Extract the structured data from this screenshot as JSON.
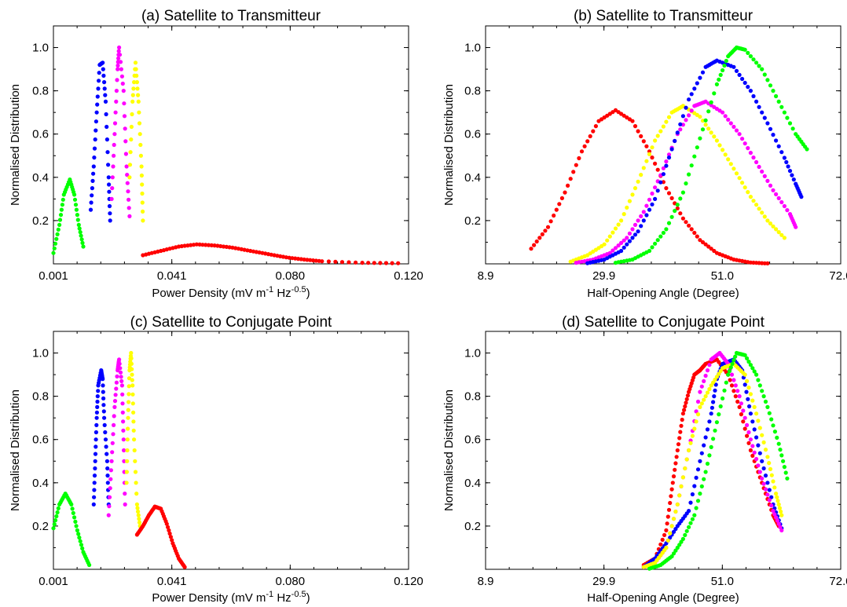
{
  "figure": {
    "panel_titles": [
      "(a) Satellite to Transmitteur",
      "(b) Satellite to Transmitteur",
      "(c) Satellite to Conjugate Point",
      "(d) Satellite to Conjugate Point"
    ],
    "ylabel": "Normalised Distribution",
    "xlabel_power_parts": [
      "Power Density (mV m",
      "-1",
      " Hz",
      "-0.5",
      ")"
    ],
    "xlabel_angle": "Half-Opening Angle (Degree)"
  },
  "colors": {
    "green": "#00ff00",
    "blue": "#0000ff",
    "magenta": "#ff00ff",
    "yellow": "#ffff00",
    "red": "#ff0000"
  },
  "chart_data": [
    {
      "type": "scatter",
      "title": "(a) Satellite to Transmitteur",
      "xlabel": "Power Density (mV m-1 Hz-0.5)",
      "ylabel": "Normalised Distribution",
      "xlim": [
        0.001,
        0.12
      ],
      "ylim": [
        0,
        1.1
      ],
      "xticks": [
        "0.001",
        "0.041",
        "0.080",
        "0.120"
      ],
      "yticks": [
        "0.2",
        "0.4",
        "0.6",
        "0.8",
        "1.0"
      ],
      "grid": false,
      "series": [
        {
          "color": "green",
          "points": [
            [
              0.001,
              0.05
            ],
            [
              0.003,
              0.18
            ],
            [
              0.0045,
              0.32
            ],
            [
              0.0065,
              0.39
            ],
            [
              0.008,
              0.32
            ],
            [
              0.0095,
              0.18
            ],
            [
              0.011,
              0.08
            ]
          ]
        },
        {
          "color": "blue",
          "points": [
            [
              0.0135,
              0.25
            ],
            [
              0.0145,
              0.45
            ],
            [
              0.0155,
              0.7
            ],
            [
              0.0165,
              0.92
            ],
            [
              0.0175,
              0.93
            ],
            [
              0.0185,
              0.75
            ],
            [
              0.0195,
              0.4
            ],
            [
              0.02,
              0.2
            ]
          ]
        },
        {
          "color": "magenta",
          "points": [
            [
              0.0205,
              0.3
            ],
            [
              0.0215,
              0.6
            ],
            [
              0.0225,
              0.9
            ],
            [
              0.023,
              1.0
            ],
            [
              0.0245,
              0.8
            ],
            [
              0.0255,
              0.45
            ],
            [
              0.0265,
              0.22
            ]
          ]
        },
        {
          "color": "yellow",
          "points": [
            [
              0.0265,
              0.4
            ],
            [
              0.0275,
              0.75
            ],
            [
              0.0285,
              0.93
            ],
            [
              0.0295,
              0.75
            ],
            [
              0.0305,
              0.45
            ],
            [
              0.031,
              0.2
            ]
          ]
        },
        {
          "color": "red",
          "points": [
            [
              0.031,
              0.04
            ],
            [
              0.037,
              0.06
            ],
            [
              0.043,
              0.08
            ],
            [
              0.049,
              0.09
            ],
            [
              0.055,
              0.085
            ],
            [
              0.061,
              0.075
            ],
            [
              0.067,
              0.06
            ],
            [
              0.073,
              0.045
            ],
            [
              0.079,
              0.03
            ],
            [
              0.085,
              0.02
            ],
            [
              0.091,
              0.012
            ],
            [
              0.1045,
              0.005
            ],
            [
              0.1165,
              0.003
            ]
          ]
        }
      ]
    },
    {
      "type": "scatter",
      "title": "(b) Satellite to Transmitteur",
      "xlabel": "Half-Opening Angle (Degree)",
      "ylabel": "Normalised Distribution",
      "xlim": [
        8.9,
        72.0
      ],
      "ylim": [
        0,
        1.1
      ],
      "xticks": [
        "8.9",
        "29.9",
        "51.0",
        "72.0"
      ],
      "yticks": [
        "0.2",
        "0.4",
        "0.6",
        "0.8",
        "1.0"
      ],
      "grid": false,
      "series": [
        {
          "color": "red",
          "points": [
            [
              17,
              0.07
            ],
            [
              20,
              0.17
            ],
            [
              23,
              0.33
            ],
            [
              26,
              0.52
            ],
            [
              29,
              0.66
            ],
            [
              32,
              0.71
            ],
            [
              35,
              0.66
            ],
            [
              38,
              0.52
            ],
            [
              41,
              0.35
            ],
            [
              44,
              0.21
            ],
            [
              47,
              0.11
            ],
            [
              50,
              0.05
            ],
            [
              53,
              0.02
            ],
            [
              56,
              0.006
            ],
            [
              59,
              0.002
            ]
          ]
        },
        {
          "color": "yellow",
          "points": [
            [
              24,
              0.01
            ],
            [
              27,
              0.04
            ],
            [
              30,
              0.09
            ],
            [
              33,
              0.2
            ],
            [
              36,
              0.38
            ],
            [
              39,
              0.57
            ],
            [
              42,
              0.7
            ],
            [
              44,
              0.73
            ],
            [
              47,
              0.68
            ],
            [
              50,
              0.57
            ],
            [
              53,
              0.44
            ],
            [
              56,
              0.31
            ],
            [
              59,
              0.2
            ],
            [
              62,
              0.12
            ]
          ]
        },
        {
          "color": "magenta",
          "points": [
            [
              25,
              0.005
            ],
            [
              28,
              0.02
            ],
            [
              31,
              0.05
            ],
            [
              34,
              0.12
            ],
            [
              37,
              0.24
            ],
            [
              40,
              0.41
            ],
            [
              43,
              0.6
            ],
            [
              46,
              0.73
            ],
            [
              48,
              0.75
            ],
            [
              51,
              0.7
            ],
            [
              54,
              0.6
            ],
            [
              57,
              0.47
            ],
            [
              60,
              0.34
            ],
            [
              63,
              0.23
            ],
            [
              64,
              0.17
            ]
          ]
        },
        {
          "color": "blue",
          "points": [
            [
              27,
              0.003
            ],
            [
              30,
              0.02
            ],
            [
              33,
              0.06
            ],
            [
              36,
              0.15
            ],
            [
              39,
              0.3
            ],
            [
              42,
              0.53
            ],
            [
              45,
              0.76
            ],
            [
              48,
              0.91
            ],
            [
              50,
              0.94
            ],
            [
              53,
              0.91
            ],
            [
              56,
              0.8
            ],
            [
              59,
              0.65
            ],
            [
              62,
              0.49
            ],
            [
              64,
              0.37
            ],
            [
              65,
              0.31
            ]
          ]
        },
        {
          "color": "green",
          "points": [
            [
              32,
              0.005
            ],
            [
              35,
              0.02
            ],
            [
              38,
              0.06
            ],
            [
              41,
              0.16
            ],
            [
              44,
              0.33
            ],
            [
              47,
              0.58
            ],
            [
              50,
              0.83
            ],
            [
              52,
              0.96
            ],
            [
              53.5,
              1.0
            ],
            [
              55,
              0.99
            ],
            [
              58,
              0.9
            ],
            [
              61,
              0.75
            ],
            [
              64,
              0.6
            ],
            [
              66,
              0.53
            ]
          ]
        }
      ]
    },
    {
      "type": "scatter",
      "title": "(c) Satellite to Conjugate Point",
      "xlabel": "Power Density (mV m-1 Hz-0.5)",
      "ylabel": "Normalised Distribution",
      "xlim": [
        0.001,
        0.12
      ],
      "ylim": [
        0,
        1.1
      ],
      "xticks": [
        "0.001",
        "0.041",
        "0.080",
        "0.120"
      ],
      "yticks": [
        "0.2",
        "0.4",
        "0.6",
        "0.8",
        "1.0"
      ],
      "grid": false,
      "series": [
        {
          "color": "green",
          "points": [
            [
              0.001,
              0.19
            ],
            [
              0.003,
              0.3
            ],
            [
              0.005,
              0.35
            ],
            [
              0.007,
              0.3
            ],
            [
              0.009,
              0.18
            ],
            [
              0.011,
              0.08
            ],
            [
              0.013,
              0.02
            ]
          ]
        },
        {
          "color": "blue",
          "points": [
            [
              0.0145,
              0.3
            ],
            [
              0.015,
              0.5
            ],
            [
              0.0155,
              0.7
            ],
            [
              0.016,
              0.85
            ],
            [
              0.017,
              0.92
            ],
            [
              0.0175,
              0.88
            ],
            [
              0.018,
              0.7
            ],
            [
              0.019,
              0.5
            ],
            [
              0.0195,
              0.3
            ]
          ]
        },
        {
          "color": "magenta",
          "points": [
            [
              0.0195,
              0.25
            ],
            [
              0.0205,
              0.5
            ],
            [
              0.0215,
              0.75
            ],
            [
              0.0225,
              0.92
            ],
            [
              0.023,
              0.97
            ],
            [
              0.024,
              0.85
            ],
            [
              0.0245,
              0.6
            ],
            [
              0.025,
              0.3
            ]
          ]
        },
        {
          "color": "yellow",
          "points": [
            [
              0.0255,
              0.4
            ],
            [
              0.026,
              0.7
            ],
            [
              0.0265,
              0.92
            ],
            [
              0.027,
              1.0
            ],
            [
              0.0275,
              0.85
            ],
            [
              0.028,
              0.6
            ],
            [
              0.029,
              0.3
            ],
            [
              0.03,
              0.2
            ]
          ]
        },
        {
          "color": "red",
          "points": [
            [
              0.029,
              0.16
            ],
            [
              0.031,
              0.2
            ],
            [
              0.033,
              0.25
            ],
            [
              0.035,
              0.29
            ],
            [
              0.037,
              0.28
            ],
            [
              0.039,
              0.21
            ],
            [
              0.041,
              0.12
            ],
            [
              0.043,
              0.05
            ],
            [
              0.045,
              0.01
            ]
          ]
        }
      ]
    },
    {
      "type": "scatter",
      "title": "(d) Satellite to Conjugate Point",
      "xlabel": "Half-Opening Angle (Degree)",
      "ylabel": "Normalised Distribution",
      "xlim": [
        8.9,
        72.0
      ],
      "ylim": [
        0,
        1.1
      ],
      "xticks": [
        "8.9",
        "29.9",
        "51.0",
        "72.0"
      ],
      "yticks": [
        "0.2",
        "0.4",
        "0.6",
        "0.8",
        "1.0"
      ],
      "grid": false,
      "series": [
        {
          "color": "red",
          "points": [
            [
              37,
              0.02
            ],
            [
              39,
              0.05
            ],
            [
              41,
              0.18
            ],
            [
              42,
              0.37
            ],
            [
              43,
              0.55
            ],
            [
              44,
              0.72
            ],
            [
              45,
              0.82
            ],
            [
              46,
              0.9
            ],
            [
              47,
              0.92
            ],
            [
              48,
              0.95
            ],
            [
              50,
              0.97
            ],
            [
              52,
              0.9
            ],
            [
              54,
              0.75
            ],
            [
              56,
              0.55
            ],
            [
              58,
              0.4
            ],
            [
              60,
              0.25
            ],
            [
              61,
              0.2
            ]
          ]
        },
        {
          "color": "blue",
          "points": [
            [
              37,
              0.01
            ],
            [
              39,
              0.05
            ],
            [
              41,
              0.12
            ],
            [
              43,
              0.2
            ],
            [
              45,
              0.27
            ],
            [
              47,
              0.5
            ],
            [
              49,
              0.72
            ],
            [
              50,
              0.88
            ],
            [
              51,
              0.95
            ],
            [
              53,
              0.97
            ],
            [
              54.5,
              0.92
            ],
            [
              56,
              0.72
            ],
            [
              58,
              0.5
            ],
            [
              60,
              0.3
            ],
            [
              61.5,
              0.19
            ]
          ]
        },
        {
          "color": "magenta",
          "points": [
            [
              37,
              0.01
            ],
            [
              39,
              0.03
            ],
            [
              41,
              0.1
            ],
            [
              43,
              0.3
            ],
            [
              45,
              0.55
            ],
            [
              47,
              0.82
            ],
            [
              49,
              0.97
            ],
            [
              50.5,
              1.0
            ],
            [
              52,
              0.95
            ],
            [
              54,
              0.8
            ],
            [
              56,
              0.6
            ],
            [
              58,
              0.42
            ],
            [
              60,
              0.27
            ],
            [
              61.5,
              0.18
            ]
          ]
        },
        {
          "color": "yellow",
          "points": [
            [
              37,
              0.01
            ],
            [
              39,
              0.03
            ],
            [
              41,
              0.1
            ],
            [
              43,
              0.3
            ],
            [
              45,
              0.55
            ],
            [
              47,
              0.75
            ],
            [
              49,
              0.85
            ],
            [
              51,
              0.93
            ],
            [
              53,
              0.95
            ],
            [
              55,
              0.9
            ],
            [
              57,
              0.72
            ],
            [
              59,
              0.52
            ],
            [
              60.5,
              0.35
            ],
            [
              61.5,
              0.25
            ]
          ]
        },
        {
          "color": "green",
          "points": [
            [
              38,
              0.003
            ],
            [
              40,
              0.02
            ],
            [
              42,
              0.06
            ],
            [
              44,
              0.14
            ],
            [
              46,
              0.25
            ],
            [
              48,
              0.45
            ],
            [
              50,
              0.68
            ],
            [
              52,
              0.9
            ],
            [
              53.5,
              1.0
            ],
            [
              55,
              0.99
            ],
            [
              57,
              0.9
            ],
            [
              59,
              0.75
            ],
            [
              61,
              0.58
            ],
            [
              62.5,
              0.42
            ]
          ]
        }
      ]
    }
  ]
}
